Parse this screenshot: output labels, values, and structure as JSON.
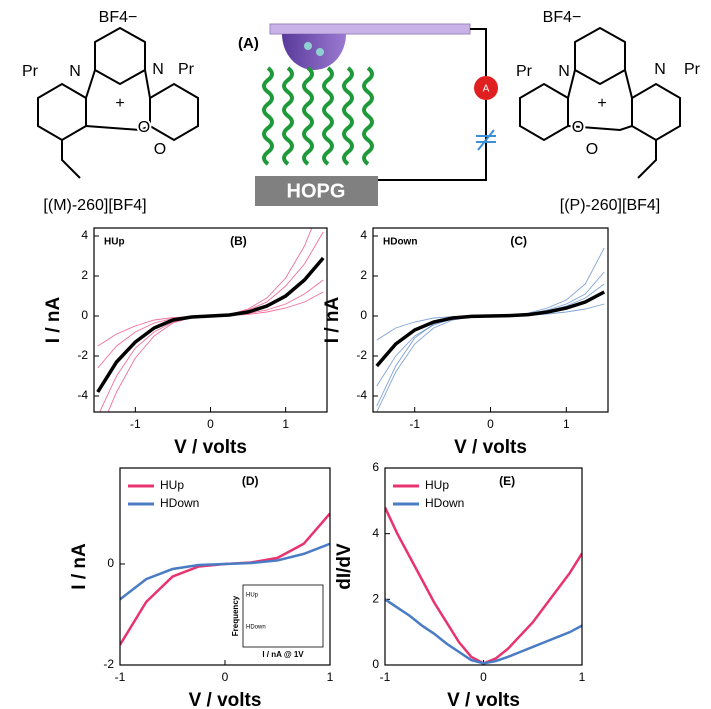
{
  "figure": {
    "panel_a": {
      "label": "(A)",
      "ammeter": "A",
      "electrode": "HOPG"
    },
    "molecules": [
      {
        "labels": [
          "Pr",
          "N",
          "BF4−",
          "N",
          "Pr",
          "+",
          "O",
          "O"
        ],
        "caption": "[(M)-260][BF4]"
      },
      {
        "labels": [
          "BF4−",
          "Pr",
          "N",
          "N",
          "Pr",
          "+",
          "O",
          "O"
        ],
        "caption": "[(P)-260][BF4]"
      }
    ]
  },
  "chart_data": [
    {
      "type": "line",
      "panel_label": "(B)",
      "annotation": "HUp",
      "xlabel": "V / volts",
      "ylabel": "I / nA",
      "x": [
        -1.5,
        -1.25,
        -1,
        -0.75,
        -0.5,
        -0.25,
        0,
        0.25,
        0.5,
        0.75,
        1,
        1.25,
        1.5
      ],
      "series": [
        {
          "color": "#e8336f",
          "values": [
            -1.5,
            -0.9,
            -0.5,
            -0.2,
            -0.08,
            -0.02,
            0,
            0.02,
            0.08,
            0.2,
            0.4,
            0.7,
            1.2
          ]
        },
        {
          "color": "#e8336f",
          "values": [
            -6,
            -3.8,
            -2.1,
            -1,
            -0.35,
            -0.08,
            0,
            0.08,
            0.35,
            0.9,
            1.9,
            3.5,
            5.8
          ]
        },
        {
          "color": "#e8336f",
          "values": [
            -5,
            -3,
            -1.6,
            -0.8,
            -0.3,
            -0.06,
            0,
            0.06,
            0.3,
            0.7,
            1.5,
            2.6,
            4.2
          ]
        },
        {
          "color": "#e8336f",
          "values": [
            -2.6,
            -1.5,
            -0.8,
            -0.35,
            -0.12,
            -0.03,
            0,
            0.03,
            0.12,
            0.3,
            0.6,
            1.1,
            1.8
          ]
        },
        {
          "color": "#000000",
          "values": [
            -3.8,
            -2.3,
            -1.3,
            -0.6,
            -0.2,
            -0.05,
            0,
            0.05,
            0.2,
            0.5,
            1.0,
            1.8,
            2.9
          ]
        }
      ],
      "xlim": [
        -1.55,
        1.55
      ],
      "xticks": [
        -1,
        0,
        1
      ],
      "ylim": [
        -4.8,
        4.4
      ],
      "yticks": [
        -4,
        -2,
        0,
        2,
        4
      ]
    },
    {
      "type": "line",
      "panel_label": "(C)",
      "annotation": "HDown",
      "xlabel": "V / volts",
      "ylabel": "I / nA",
      "x": [
        -1.5,
        -1.25,
        -1,
        -0.75,
        -0.5,
        -0.25,
        0,
        0.25,
        0.5,
        0.75,
        1,
        1.25,
        1.5
      ],
      "series": [
        {
          "color": "#4a7cc4",
          "values": [
            -4.8,
            -2.8,
            -1.4,
            -0.6,
            -0.2,
            -0.04,
            0,
            0.04,
            0.15,
            0.4,
            0.8,
            1.6,
            3.4
          ]
        },
        {
          "color": "#4a7cc4",
          "values": [
            -1.2,
            -0.6,
            -0.3,
            -0.1,
            -0.03,
            0,
            0,
            0,
            0.03,
            0.1,
            0.2,
            0.35,
            0.6
          ]
        },
        {
          "color": "#4a7cc4",
          "values": [
            -3.5,
            -2,
            -1,
            -0.45,
            -0.15,
            -0.03,
            0,
            0.03,
            0.1,
            0.3,
            0.6,
            1.1,
            2.2
          ]
        },
        {
          "color": "#4a7cc4",
          "values": [
            -4.5,
            -2.5,
            -1.1,
            -0.4,
            -0.12,
            0,
            0,
            0.02,
            0.08,
            0.25,
            0.5,
            0.9,
            1.6
          ]
        },
        {
          "color": "#000000",
          "values": [
            -2.5,
            -1.4,
            -0.7,
            -0.3,
            -0.1,
            -0.02,
            0,
            0.02,
            0.07,
            0.2,
            0.4,
            0.7,
            1.2
          ]
        }
      ],
      "xlim": [
        -1.55,
        1.55
      ],
      "xticks": [
        -1,
        0,
        1
      ],
      "ylim": [
        -4.8,
        4.4
      ],
      "yticks": [
        -4,
        -2,
        0,
        2,
        4
      ]
    },
    {
      "type": "line",
      "panel_label": "(D)",
      "xlabel": "V / volts",
      "ylabel": "I / nA",
      "inset": {
        "ylabel": "Frequency",
        "xlabel": "I / nA @ 1V",
        "labels": [
          "HUp",
          "HDown"
        ]
      },
      "x": [
        -1,
        -0.75,
        -0.5,
        -0.25,
        0,
        0.25,
        0.5,
        0.75,
        1
      ],
      "series": [
        {
          "name": "HUp",
          "color": "#e8336f",
          "values": [
            -1.6,
            -0.75,
            -0.25,
            -0.05,
            0,
            0.03,
            0.12,
            0.4,
            1.0
          ]
        },
        {
          "name": "HDown",
          "color": "#4a7cc4",
          "values": [
            -0.7,
            -0.3,
            -0.1,
            -0.02,
            0,
            0.02,
            0.07,
            0.2,
            0.4
          ]
        }
      ],
      "xlim": [
        -1,
        1
      ],
      "xticks": [
        -1,
        0,
        1
      ],
      "ylim": [
        -2,
        1.9
      ],
      "yticks": [
        -2,
        0
      ],
      "legend": "upper left"
    },
    {
      "type": "line",
      "panel_label": "(E)",
      "xlabel": "V / volts",
      "ylabel": "dI/dV",
      "x": [
        -1,
        -0.875,
        -0.75,
        -0.625,
        -0.5,
        -0.375,
        -0.25,
        -0.125,
        0,
        0.125,
        0.25,
        0.375,
        0.5,
        0.625,
        0.75,
        0.875,
        1
      ],
      "series": [
        {
          "name": "HUp",
          "color": "#e8336f",
          "values": [
            4.8,
            4.0,
            3.3,
            2.6,
            1.9,
            1.3,
            0.7,
            0.25,
            0.05,
            0.2,
            0.5,
            0.9,
            1.3,
            1.8,
            2.3,
            2.8,
            3.4
          ]
        },
        {
          "name": "HDown",
          "color": "#4a7cc4",
          "values": [
            2.0,
            1.75,
            1.5,
            1.2,
            0.95,
            0.65,
            0.4,
            0.15,
            0.05,
            0.12,
            0.25,
            0.4,
            0.55,
            0.7,
            0.85,
            1.0,
            1.2
          ]
        }
      ],
      "xlim": [
        -1,
        1
      ],
      "xticks": [
        -1,
        0,
        1
      ],
      "ylim": [
        0,
        6
      ],
      "yticks": [
        0,
        2,
        4,
        6
      ],
      "legend": "upper left"
    }
  ]
}
